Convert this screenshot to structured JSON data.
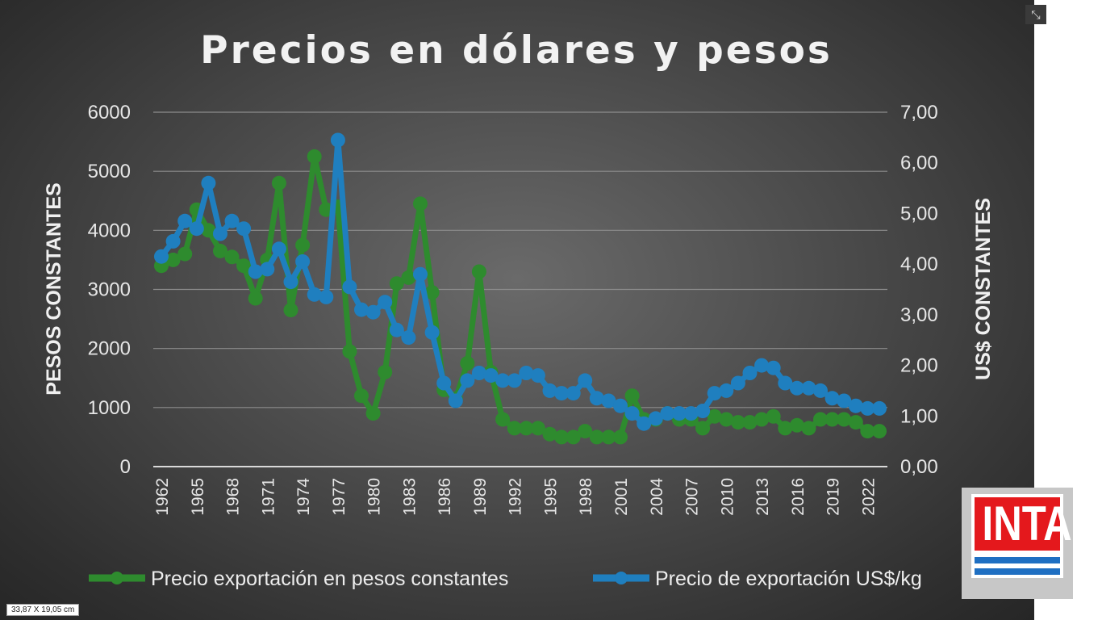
{
  "window": {
    "resize_icon": "compress-arrows-icon",
    "resize_glyph": "⤡",
    "dimension_label": "33,87 X 19,05 cm"
  },
  "logo": {
    "text": "INTA",
    "colors": {
      "red": "#e4181c",
      "blue": "#1f6fc2"
    }
  },
  "chart_data": {
    "type": "line",
    "title": "Precios en dólares y pesos",
    "ylabel": "PESOS CONSTANTES",
    "y2label": "US$ CONSTANTES",
    "ylim": [
      0,
      6000
    ],
    "y2lim": [
      0,
      7
    ],
    "yticks": [
      "0",
      "1000",
      "2000",
      "3000",
      "4000",
      "5000",
      "6000"
    ],
    "y2ticks": [
      "0,00",
      "1,00",
      "2,00",
      "3,00",
      "4,00",
      "5,00",
      "6,00",
      "7,00"
    ],
    "xticks": [
      "1962",
      "1965",
      "1968",
      "1971",
      "1974",
      "1977",
      "1980",
      "1983",
      "1986",
      "1989",
      "1992",
      "1995",
      "1998",
      "2001",
      "2004",
      "2007",
      "2010",
      "2013",
      "2016",
      "2019",
      "2022"
    ],
    "grid": true,
    "legend": "bottom",
    "x": [
      1962,
      1963,
      1964,
      1965,
      1966,
      1967,
      1968,
      1969,
      1970,
      1971,
      1972,
      1973,
      1974,
      1975,
      1976,
      1977,
      1978,
      1979,
      1980,
      1981,
      1982,
      1983,
      1984,
      1985,
      1986,
      1987,
      1988,
      1989,
      1990,
      1991,
      1992,
      1993,
      1994,
      1995,
      1996,
      1997,
      1998,
      1999,
      2000,
      2001,
      2002,
      2003,
      2004,
      2005,
      2006,
      2007,
      2008,
      2009,
      2010,
      2011,
      2012,
      2013,
      2014,
      2015,
      2016,
      2017,
      2018,
      2019,
      2020,
      2021,
      2022,
      2023
    ],
    "series": [
      {
        "name": "Precio exportación en pesos constantes",
        "axis": "left",
        "color": "#2e8b2e",
        "values": [
          3400,
          3500,
          3600,
          4350,
          4000,
          3650,
          3550,
          3400,
          2850,
          3500,
          4800,
          2650,
          3750,
          5250,
          4350,
          4400,
          1950,
          1200,
          900,
          1600,
          3100,
          3200,
          4450,
          2950,
          1300,
          1150,
          1750,
          3300,
          1600,
          800,
          650,
          650,
          650,
          550,
          500,
          500,
          600,
          500,
          500,
          500,
          1200,
          800,
          800,
          900,
          800,
          800,
          650,
          850,
          800,
          750,
          750,
          800,
          850,
          650,
          700,
          650,
          800,
          800,
          800,
          750,
          600,
          600
        ]
      },
      {
        "name": "Precio de exportación US$/kg",
        "axis": "right",
        "color": "#1f7fbf",
        "values": [
          4.15,
          4.45,
          4.85,
          4.7,
          5.6,
          4.6,
          4.85,
          4.7,
          3.85,
          3.9,
          4.3,
          3.65,
          4.05,
          3.4,
          3.35,
          6.45,
          3.55,
          3.1,
          3.05,
          3.25,
          2.7,
          2.55,
          3.8,
          2.65,
          1.65,
          1.3,
          1.7,
          1.85,
          1.8,
          1.7,
          1.7,
          1.85,
          1.8,
          1.5,
          1.45,
          1.45,
          1.7,
          1.35,
          1.3,
          1.2,
          1.05,
          0.85,
          0.95,
          1.05,
          1.05,
          1.05,
          1.1,
          1.45,
          1.5,
          1.65,
          1.85,
          2.0,
          1.95,
          1.65,
          1.55,
          1.55,
          1.5,
          1.35,
          1.3,
          1.2,
          1.15,
          1.15
        ]
      }
    ]
  }
}
